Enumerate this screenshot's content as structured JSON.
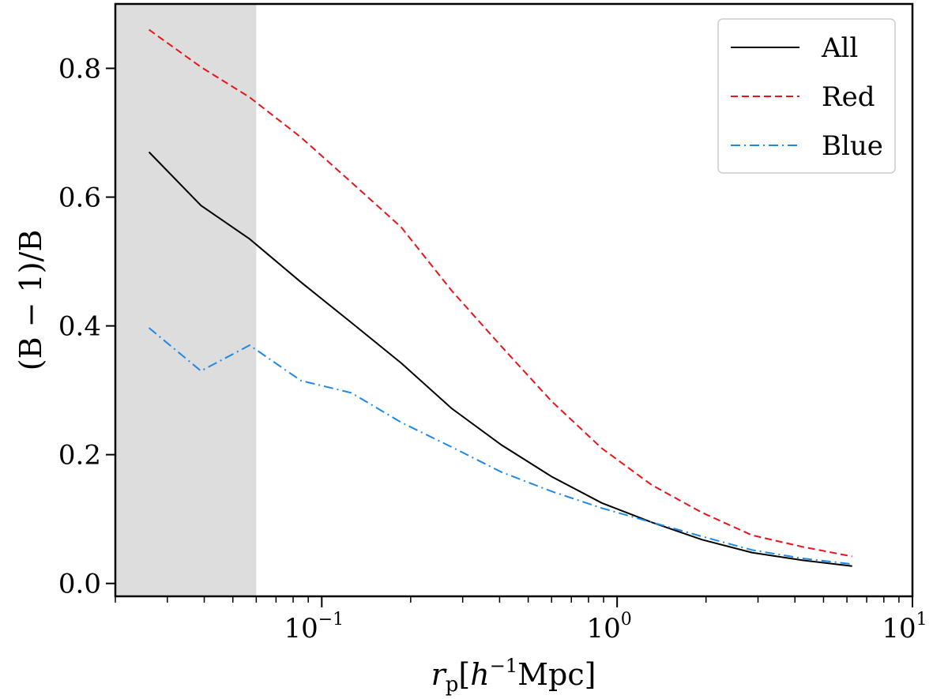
{
  "chart_data": {
    "type": "line",
    "xscale": "log",
    "xlim": [
      0.02,
      10
    ],
    "ylim": [
      -0.02,
      0.9
    ],
    "xlabel": "r_p[h^-1 Mpc]",
    "ylabel": "(B − 1)/B",
    "x_ticks": [
      {
        "base": "10",
        "exp": "−1",
        "value": 0.1
      },
      {
        "base": "10",
        "exp": "0",
        "value": 1
      },
      {
        "base": "10",
        "exp": "1",
        "value": 10
      }
    ],
    "y_ticks": [
      "0.0",
      "0.2",
      "0.4",
      "0.6",
      "0.8"
    ],
    "y_tick_values": [
      0.0,
      0.2,
      0.4,
      0.6,
      0.8
    ],
    "shaded_region": {
      "x_from": 0.02,
      "x_to": 0.06,
      "color": "#dddddd"
    },
    "legend_position": "top-right",
    "series": [
      {
        "name": "All",
        "color": "#000000",
        "style": "solid",
        "x": [
          0.026,
          0.039,
          0.057,
          0.085,
          0.126,
          0.186,
          0.275,
          0.406,
          0.6,
          0.887,
          1.31,
          1.94,
          2.86,
          4.23,
          6.25
        ],
        "y": [
          0.67,
          0.587,
          0.535,
          0.468,
          0.405,
          0.342,
          0.272,
          0.215,
          0.166,
          0.125,
          0.095,
          0.068,
          0.048,
          0.036,
          0.027
        ]
      },
      {
        "name": "Red",
        "color": "#e8141a",
        "style": "dashed",
        "x": [
          0.026,
          0.039,
          0.057,
          0.085,
          0.126,
          0.186,
          0.275,
          0.406,
          0.6,
          0.887,
          1.31,
          1.94,
          2.86,
          4.23,
          6.25
        ],
        "y": [
          0.86,
          0.802,
          0.755,
          0.693,
          0.623,
          0.553,
          0.455,
          0.368,
          0.283,
          0.21,
          0.153,
          0.11,
          0.075,
          0.057,
          0.042
        ]
      },
      {
        "name": "Blue",
        "color": "#1e88e5",
        "style": "dashdot",
        "x": [
          0.026,
          0.039,
          0.057,
          0.085,
          0.126,
          0.186,
          0.275,
          0.406,
          0.6,
          0.887,
          1.31,
          1.94,
          2.86,
          4.23,
          6.25
        ],
        "y": [
          0.397,
          0.33,
          0.37,
          0.315,
          0.296,
          0.25,
          0.212,
          0.173,
          0.143,
          0.117,
          0.095,
          0.073,
          0.052,
          0.039,
          0.03
        ]
      }
    ]
  }
}
